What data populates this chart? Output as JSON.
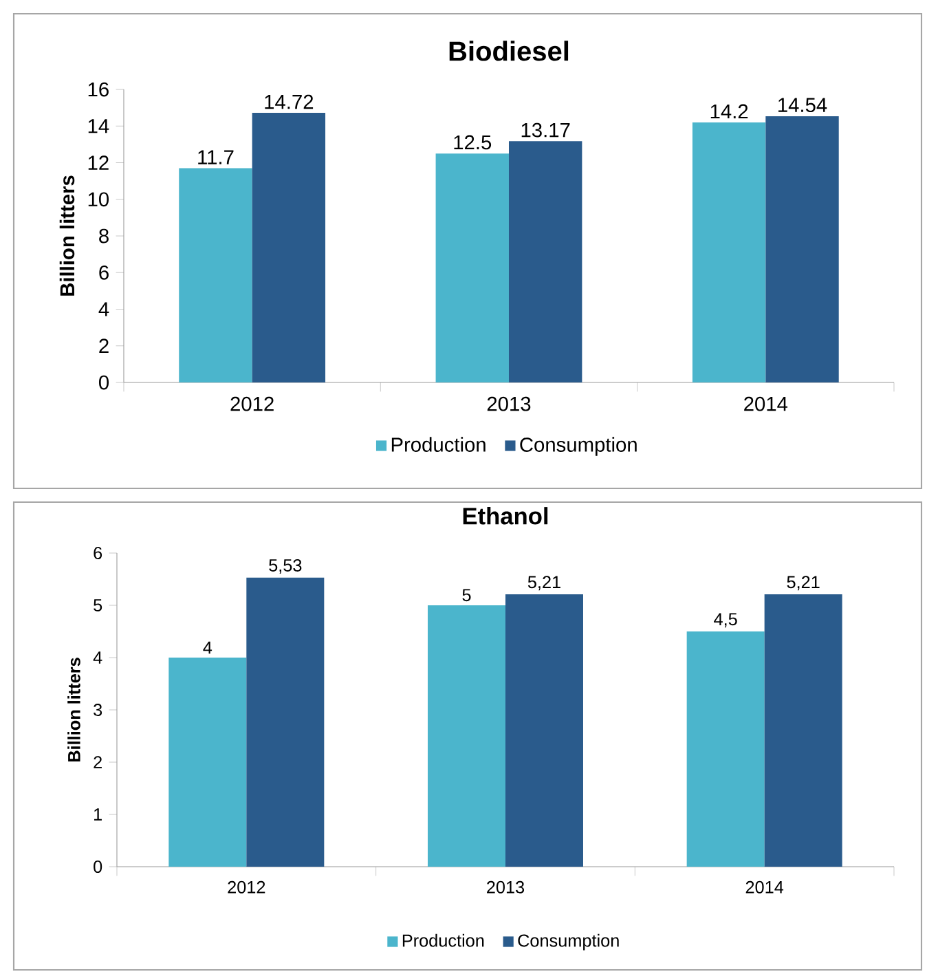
{
  "chart_data": [
    {
      "type": "bar",
      "title": "Biodiesel",
      "ylabel": "Billion litters",
      "categories": [
        "2012",
        "2013",
        "2014"
      ],
      "series": [
        {
          "name": "Production",
          "color": "#4bb5cc",
          "values": [
            11.7,
            12.5,
            14.2
          ],
          "value_labels": [
            "11.7",
            "12.5",
            "14.2"
          ]
        },
        {
          "name": "Consumption",
          "color": "#2a5b8c",
          "values": [
            14.72,
            13.17,
            14.54
          ],
          "value_labels": [
            "14.72",
            "13.17",
            "14.54"
          ]
        }
      ],
      "ylim": [
        0,
        16
      ],
      "yticks": [
        0,
        2,
        4,
        6,
        8,
        10,
        12,
        14,
        16
      ],
      "legend": "bottom"
    },
    {
      "type": "bar",
      "title": "Ethanol",
      "ylabel": "Billion litters",
      "categories": [
        "2012",
        "2013",
        "2014"
      ],
      "series": [
        {
          "name": "Production",
          "color": "#4bb5cc",
          "values": [
            4,
            5,
            4.5
          ],
          "value_labels": [
            "4",
            "5",
            "4,5"
          ]
        },
        {
          "name": "Consumption",
          "color": "#2a5b8c",
          "values": [
            5.53,
            5.21,
            5.21
          ],
          "value_labels": [
            "5,53",
            "5,21",
            "5,21"
          ]
        }
      ],
      "ylim": [
        0,
        6
      ],
      "yticks": [
        0,
        1,
        2,
        3,
        4,
        5,
        6
      ],
      "legend": "bottom"
    }
  ]
}
